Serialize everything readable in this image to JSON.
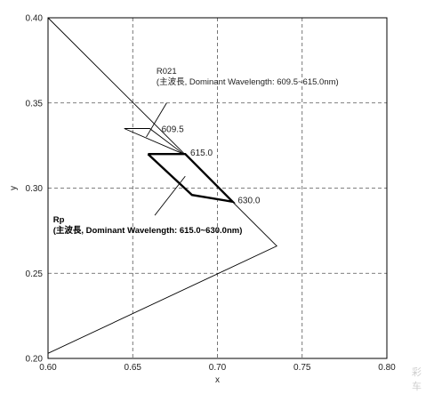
{
  "chart_data": {
    "type": "line",
    "xlabel": "x",
    "ylabel": "y",
    "xlim": [
      0.6,
      0.8
    ],
    "ylim": [
      0.2,
      0.4
    ],
    "x_ticks": [
      "0.60",
      "0.65",
      "0.70",
      "0.75",
      "0.80"
    ],
    "y_ticks": [
      "0.20",
      "0.25",
      "0.30",
      "0.35",
      "0.40"
    ],
    "grid": true,
    "series": [
      {
        "kind": "triangle",
        "points": [
          [
            0.6,
            0.4
          ],
          [
            0.735,
            0.266
          ],
          [
            0.6,
            0.203
          ],
          [
            0.6,
            0.4
          ]
        ]
      },
      {
        "name": "R021",
        "kind": "thin-region",
        "points": [
          [
            0.645,
            0.335
          ],
          [
            0.66,
            0.335
          ],
          [
            0.68,
            0.32
          ],
          [
            0.645,
            0.335
          ]
        ]
      },
      {
        "name": "Rp",
        "kind": "bold-region",
        "points": [
          [
            0.659,
            0.32
          ],
          [
            0.681,
            0.32
          ],
          [
            0.709,
            0.292
          ],
          [
            0.685,
            0.296
          ],
          [
            0.659,
            0.32
          ]
        ]
      }
    ],
    "point_labels": [
      {
        "text": "609.5",
        "x": 0.667,
        "y": 0.333
      },
      {
        "text": "615.0",
        "x": 0.684,
        "y": 0.319
      },
      {
        "text": "630.0",
        "x": 0.712,
        "y": 0.291
      }
    ],
    "annotations": [
      {
        "title": "R021",
        "subtitle": "(主波長, Dominant Wavelength: 609.5~615.0nm)",
        "bold": false,
        "text_x": 0.664,
        "text_y": 0.367,
        "leader": [
          [
            0.67,
            0.35
          ],
          [
            0.658,
            0.33
          ]
        ]
      },
      {
        "title": "Rp",
        "subtitle": "(主波長, Dominant Wavelength: 615.0~630.0nm)",
        "bold": true,
        "text_x": 0.603,
        "text_y": 0.28,
        "leader": [
          [
            0.663,
            0.284
          ],
          [
            0.681,
            0.307
          ]
        ]
      }
    ]
  },
  "watermark": {
    "line1": "彩",
    "line2": "车"
  }
}
